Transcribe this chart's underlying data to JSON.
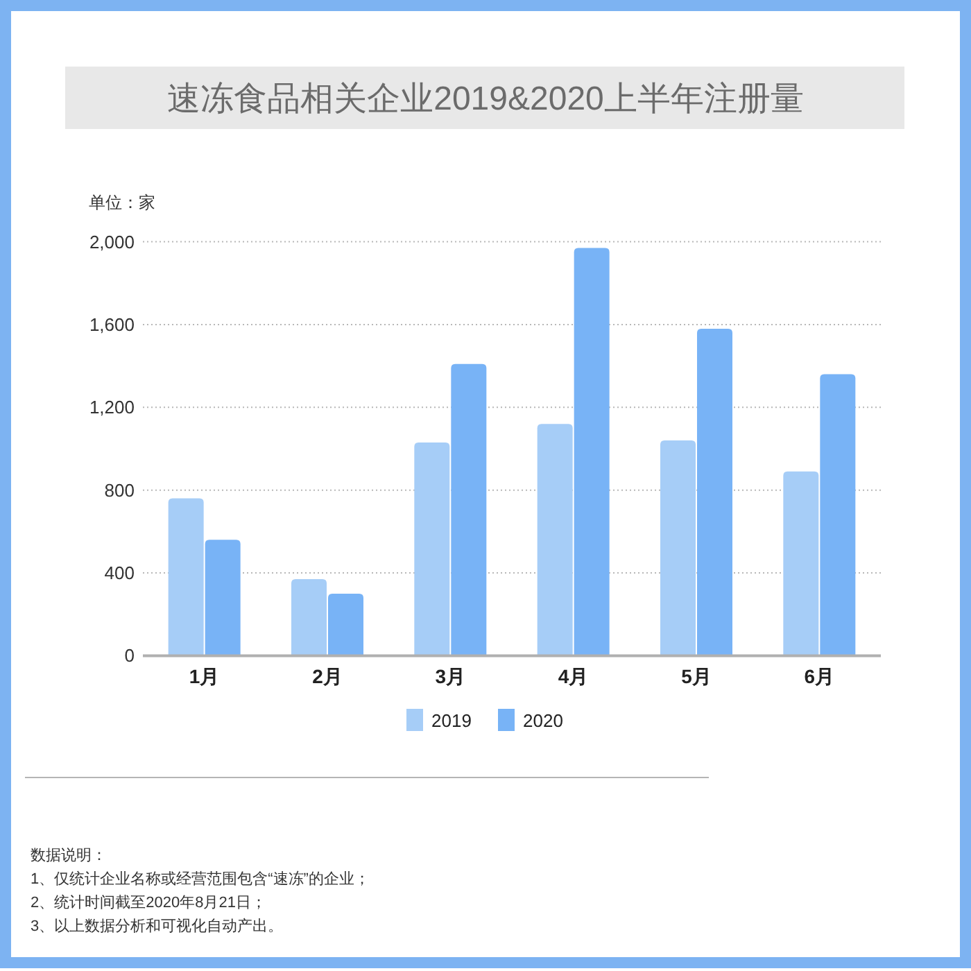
{
  "chart_data": {
    "type": "bar",
    "title": "速冻食品相关企业2019&2020上半年注册量",
    "ylabel": "单位：家",
    "categories": [
      "1月",
      "2月",
      "3月",
      "4月",
      "5月",
      "6月"
    ],
    "series": [
      {
        "name": "2019",
        "color": "#a6cdf7",
        "values": [
          760,
          370,
          1030,
          1120,
          1040,
          890
        ]
      },
      {
        "name": "2020",
        "color": "#78b3f6",
        "values": [
          560,
          300,
          1410,
          1970,
          1580,
          1360
        ]
      }
    ],
    "ylim": [
      0,
      2000
    ],
    "yticks": [
      0,
      400,
      800,
      {
        "value": 1200,
        "label": "1,200"
      },
      {
        "value": 1600,
        "label": "1,600"
      },
      {
        "value": 2000,
        "label": "2,000"
      }
    ],
    "grid": "y",
    "legend": "bottom",
    "annotations": [
      "数据说明：",
      "1、仅统计企业名称或经营范围包含“速冻”的企业；",
      "2、统计时间截至2020年8月21日；",
      "3、以上数据分析和可视化自动产出。"
    ]
  }
}
